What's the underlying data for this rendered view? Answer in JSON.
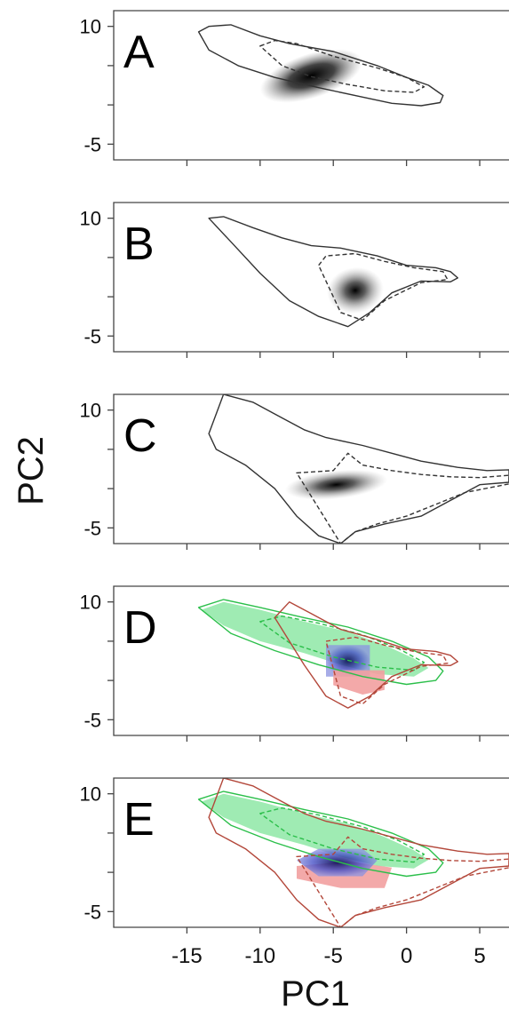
{
  "colors": {
    "frame": "#444444",
    "contour_black": "#333333",
    "contour_green": "#2bbf4a",
    "contour_red": "#b3473a",
    "fill_green": "#8ee8a6",
    "fill_blue": "#6f78d6",
    "fill_red": "#f2a0a0",
    "density_dark": "#000000"
  },
  "chart_data": {
    "type": "heatmap",
    "title": "",
    "xlabel": "PC1",
    "ylabel": "PC2",
    "xlim": [
      -20,
      7
    ],
    "ylim": [
      -7,
      12
    ],
    "x_ticks": [
      -15,
      -10,
      -5,
      0,
      5
    ],
    "x_tick_labels": [
      "-15",
      "-10",
      "-5",
      "0",
      "5"
    ],
    "y_ticks": [
      10,
      5,
      0,
      -5
    ],
    "y_tick_labels": [
      "10",
      "",
      "",
      "-5"
    ],
    "grid": false,
    "panels": [
      {
        "label": "A",
        "density_peak": {
          "x": -6.5,
          "y": 3.7
        },
        "contours": [
          {
            "level": "outer",
            "style": "solid",
            "color": "black",
            "x": [
              -14.2,
              -13.5,
              -12,
              -10,
              -8,
              -5,
              -2,
              0,
              1.5,
              2.5,
              2.3,
              1,
              -1,
              -3,
              -6,
              -9,
              -11.5,
              -13.5,
              -14.2
            ],
            "y": [
              9.3,
              10.0,
              10.2,
              8.8,
              7.8,
              6.8,
              5.0,
              3.5,
              2.5,
              1.2,
              0.3,
              -0.1,
              0.2,
              1.0,
              2.2,
              3.5,
              5.0,
              7.0,
              9.3
            ]
          },
          {
            "level": "inner",
            "style": "dashed",
            "color": "black",
            "x": [
              -10,
              -9,
              -7.5,
              -5,
              -2,
              0,
              1.2,
              0.5,
              -1.5,
              -4,
              -6.5,
              -8.5,
              -10
            ],
            "y": [
              7.5,
              8.2,
              7.8,
              6.2,
              4.7,
              3.5,
              2.3,
              1.6,
              1.8,
              2.6,
              3.6,
              5.0,
              7.5
            ]
          }
        ]
      },
      {
        "label": "B",
        "density_peak": {
          "x": -3.5,
          "y": 0.8
        },
        "contours": [
          {
            "level": "outer",
            "style": "solid",
            "color": "black",
            "x": [
              -13.5,
              -12.5,
              -10.5,
              -8.5,
              -6.5,
              -4.5,
              -2,
              0,
              2,
              3,
              3.5,
              3,
              1,
              -1,
              -2.5,
              -4,
              -6,
              -8,
              -10,
              -12,
              -13.5
            ],
            "y": [
              10.0,
              10.2,
              8.8,
              7.5,
              6.5,
              6.2,
              5.2,
              4.0,
              3.7,
              3.2,
              2.4,
              1.9,
              2.0,
              0.5,
              -2.0,
              -3.8,
              -2.5,
              -0.5,
              3.0,
              7.0,
              10.0
            ]
          },
          {
            "level": "inner",
            "style": "dashed",
            "color": "black",
            "x": [
              -6,
              -5.5,
              -3.5,
              -1.5,
              0.5,
              2.5,
              2.8,
              1,
              -1.5,
              -3,
              -4.5,
              -6
            ],
            "y": [
              4.0,
              5.2,
              5.5,
              4.5,
              3.7,
              3.2,
              2.2,
              1.8,
              -0.5,
              -3.0,
              -2.0,
              4.0
            ]
          }
        ]
      },
      {
        "label": "C",
        "density_peak": {
          "x": -4.8,
          "y": 0.5
        },
        "contours": [
          {
            "level": "outer",
            "style": "solid",
            "color": "black",
            "x": [
              -13.5,
              -12.5,
              -10.5,
              -8.5,
              -7,
              -5.5,
              -3,
              -1,
              1,
              3.5,
              5.5,
              7,
              7,
              5,
              3,
              1,
              -1.5,
              -3.5,
              -4.5,
              -6,
              -7.5,
              -9,
              -11,
              -13,
              -13.5
            ],
            "y": [
              7.0,
              12.0,
              11.0,
              9.0,
              7.5,
              6.5,
              5.5,
              4.5,
              3.5,
              2.7,
              2.3,
              2.4,
              0.8,
              0.5,
              -1.5,
              -3.5,
              -4.5,
              -5.5,
              -7.0,
              -6.0,
              -3.5,
              0.0,
              3.0,
              5.0,
              7.0
            ]
          },
          {
            "level": "inner",
            "style": "dashed",
            "color": "black",
            "x": [
              -7.5,
              -5,
              -4,
              -3,
              -1,
              1,
              3,
              5,
              7,
              7,
              4,
              2,
              0,
              -2,
              -3.5,
              -4.5,
              -6.5,
              -7.5
            ],
            "y": [
              2.0,
              2.3,
              4.5,
              3.0,
              2.3,
              1.8,
              1.5,
              1.4,
              1.7,
              0.6,
              -0.5,
              -2.0,
              -3.5,
              -4.5,
              -5.5,
              -7.0,
              -1.0,
              2.0
            ]
          }
        ]
      },
      {
        "label": "D",
        "density_regions": [
          {
            "color": "green",
            "x": [
              -14,
              -12.5,
              -10,
              -7,
              -4,
              -1.5,
              0.5,
              1.5,
              0.5,
              -2,
              -4.5,
              -7,
              -10,
              -12.5,
              -14
            ],
            "y": [
              9.0,
              10.0,
              9.0,
              7.5,
              6.2,
              4.5,
              2.8,
              1.6,
              0.5,
              0.8,
              2.0,
              3.5,
              5.0,
              7.0,
              9.0
            ]
          },
          {
            "color": "blue",
            "x": [
              -5.5,
              -2.5,
              -2.5,
              -5.5
            ],
            "y": [
              4.5,
              4.5,
              0.5,
              0.5
            ]
          },
          {
            "color": "red",
            "x": [
              -5,
              -1.5,
              -1.5,
              -3,
              -5
            ],
            "y": [
              1.3,
              1.3,
              -1.2,
              -1.8,
              -0.6
            ]
          }
        ],
        "contours": [
          {
            "level": "outer",
            "style": "solid",
            "color": "green",
            "x": [
              -14.2,
              -12.5,
              -10,
              -7,
              -4,
              -1,
              1.5,
              2.5,
              2,
              0,
              -3,
              -6,
              -9,
              -12,
              -14.2
            ],
            "y": [
              9.3,
              10.3,
              9.3,
              8.0,
              6.8,
              5.0,
              3.0,
              1.2,
              0.0,
              -0.5,
              0.5,
              2.0,
              3.8,
              6.0,
              9.3
            ]
          },
          {
            "level": "inner",
            "style": "dashed",
            "color": "green",
            "x": [
              -10,
              -8.5,
              -6,
              -3,
              -0.5,
              1.2,
              0.5,
              -2,
              -5,
              -8,
              -10
            ],
            "y": [
              7.5,
              8.2,
              7.3,
              5.8,
              4.0,
              2.3,
              1.3,
              1.7,
              3.0,
              4.8,
              7.5
            ]
          },
          {
            "level": "outer",
            "style": "solid",
            "color": "red",
            "x": [
              -9,
              -8,
              -6.5,
              -4.5,
              -2,
              0,
              2,
              3,
              3.5,
              3,
              1,
              -1,
              -2.5,
              -4,
              -5.5,
              -7,
              -9
            ],
            "y": [
              8.0,
              10.0,
              8.5,
              6.5,
              5.2,
              4.0,
              3.7,
              3.2,
              2.4,
              1.9,
              2.0,
              0.5,
              -2.0,
              -3.5,
              -2.0,
              2.0,
              8.0
            ]
          },
          {
            "level": "inner",
            "style": "dashed",
            "color": "red",
            "x": [
              -5.5,
              -3.5,
              -1.5,
              0.5,
              2.5,
              2.8,
              1,
              -1.5,
              -3,
              -4.5,
              -5.5
            ],
            "y": [
              5.0,
              5.5,
              4.5,
              3.7,
              3.2,
              2.2,
              1.8,
              -0.5,
              -3.0,
              -2.0,
              5.0
            ]
          }
        ]
      },
      {
        "label": "E",
        "density_regions": [
          {
            "color": "green",
            "x": [
              -14,
              -12.5,
              -10,
              -7,
              -4,
              -1.5,
              0.5,
              1.5,
              0.5,
              -2,
              -4.5,
              -7,
              -10,
              -12.5,
              -14
            ],
            "y": [
              9.0,
              10.0,
              9.0,
              7.5,
              6.2,
              4.5,
              2.8,
              1.6,
              0.5,
              0.8,
              2.0,
              3.5,
              5.0,
              7.0,
              9.0
            ]
          },
          {
            "color": "red",
            "x": [
              -7.5,
              -4,
              -1,
              -1.5,
              -4.5,
              -7.5
            ],
            "y": [
              0.8,
              1.4,
              0.6,
              -2.0,
              -2.0,
              -0.8
            ]
          },
          {
            "color": "blue",
            "x": [
              -7.5,
              -6,
              -3,
              -2,
              -3,
              -6,
              -7.5
            ],
            "y": [
              1.5,
              3.0,
              3.0,
              1.5,
              -0.5,
              -0.5,
              1.5
            ]
          }
        ],
        "contours": [
          {
            "level": "outer",
            "style": "solid",
            "color": "green",
            "x": [
              -14.2,
              -12.5,
              -10,
              -7,
              -4,
              -1,
              1.5,
              2.5,
              2,
              0,
              -3,
              -6,
              -9,
              -12,
              -14.2
            ],
            "y": [
              9.3,
              10.3,
              9.3,
              8.0,
              6.8,
              5.0,
              3.0,
              1.2,
              0.0,
              -0.5,
              0.5,
              2.0,
              3.8,
              6.0,
              9.3
            ]
          },
          {
            "level": "inner",
            "style": "dashed",
            "color": "green",
            "x": [
              -10,
              -8.5,
              -6,
              -3,
              -0.5,
              1.2,
              0.5,
              -2,
              -5,
              -8,
              -10
            ],
            "y": [
              7.5,
              8.2,
              7.3,
              5.8,
              4.0,
              2.3,
              1.3,
              1.7,
              3.0,
              4.8,
              7.5
            ]
          },
          {
            "level": "outer",
            "style": "solid",
            "color": "red",
            "x": [
              -13.5,
              -12.5,
              -10.5,
              -8.5,
              -7,
              -5.5,
              -3,
              -1,
              1,
              3.5,
              5.5,
              7,
              7,
              5,
              3,
              1,
              -1.5,
              -3.5,
              -4.5,
              -6,
              -7.5,
              -9,
              -11,
              -13,
              -13.5
            ],
            "y": [
              7.0,
              12.0,
              11.0,
              9.0,
              7.5,
              6.5,
              5.5,
              4.5,
              3.5,
              2.7,
              2.3,
              2.4,
              0.8,
              0.5,
              -1.5,
              -3.5,
              -4.5,
              -5.5,
              -7.0,
              -6.0,
              -3.5,
              0.0,
              3.0,
              5.0,
              7.0
            ]
          },
          {
            "level": "inner",
            "style": "dashed",
            "color": "red",
            "x": [
              -7.5,
              -5,
              -4,
              -3,
              -1,
              1,
              3,
              5,
              7,
              7,
              4,
              2,
              0,
              -2,
              -3.5,
              -4.5,
              -6.5,
              -7.5
            ],
            "y": [
              2.0,
              2.3,
              4.5,
              3.0,
              2.3,
              1.8,
              1.5,
              1.4,
              1.7,
              0.6,
              -0.5,
              -2.0,
              -3.5,
              -4.5,
              -5.5,
              -7.0,
              -1.0,
              2.0
            ]
          }
        ]
      }
    ]
  }
}
